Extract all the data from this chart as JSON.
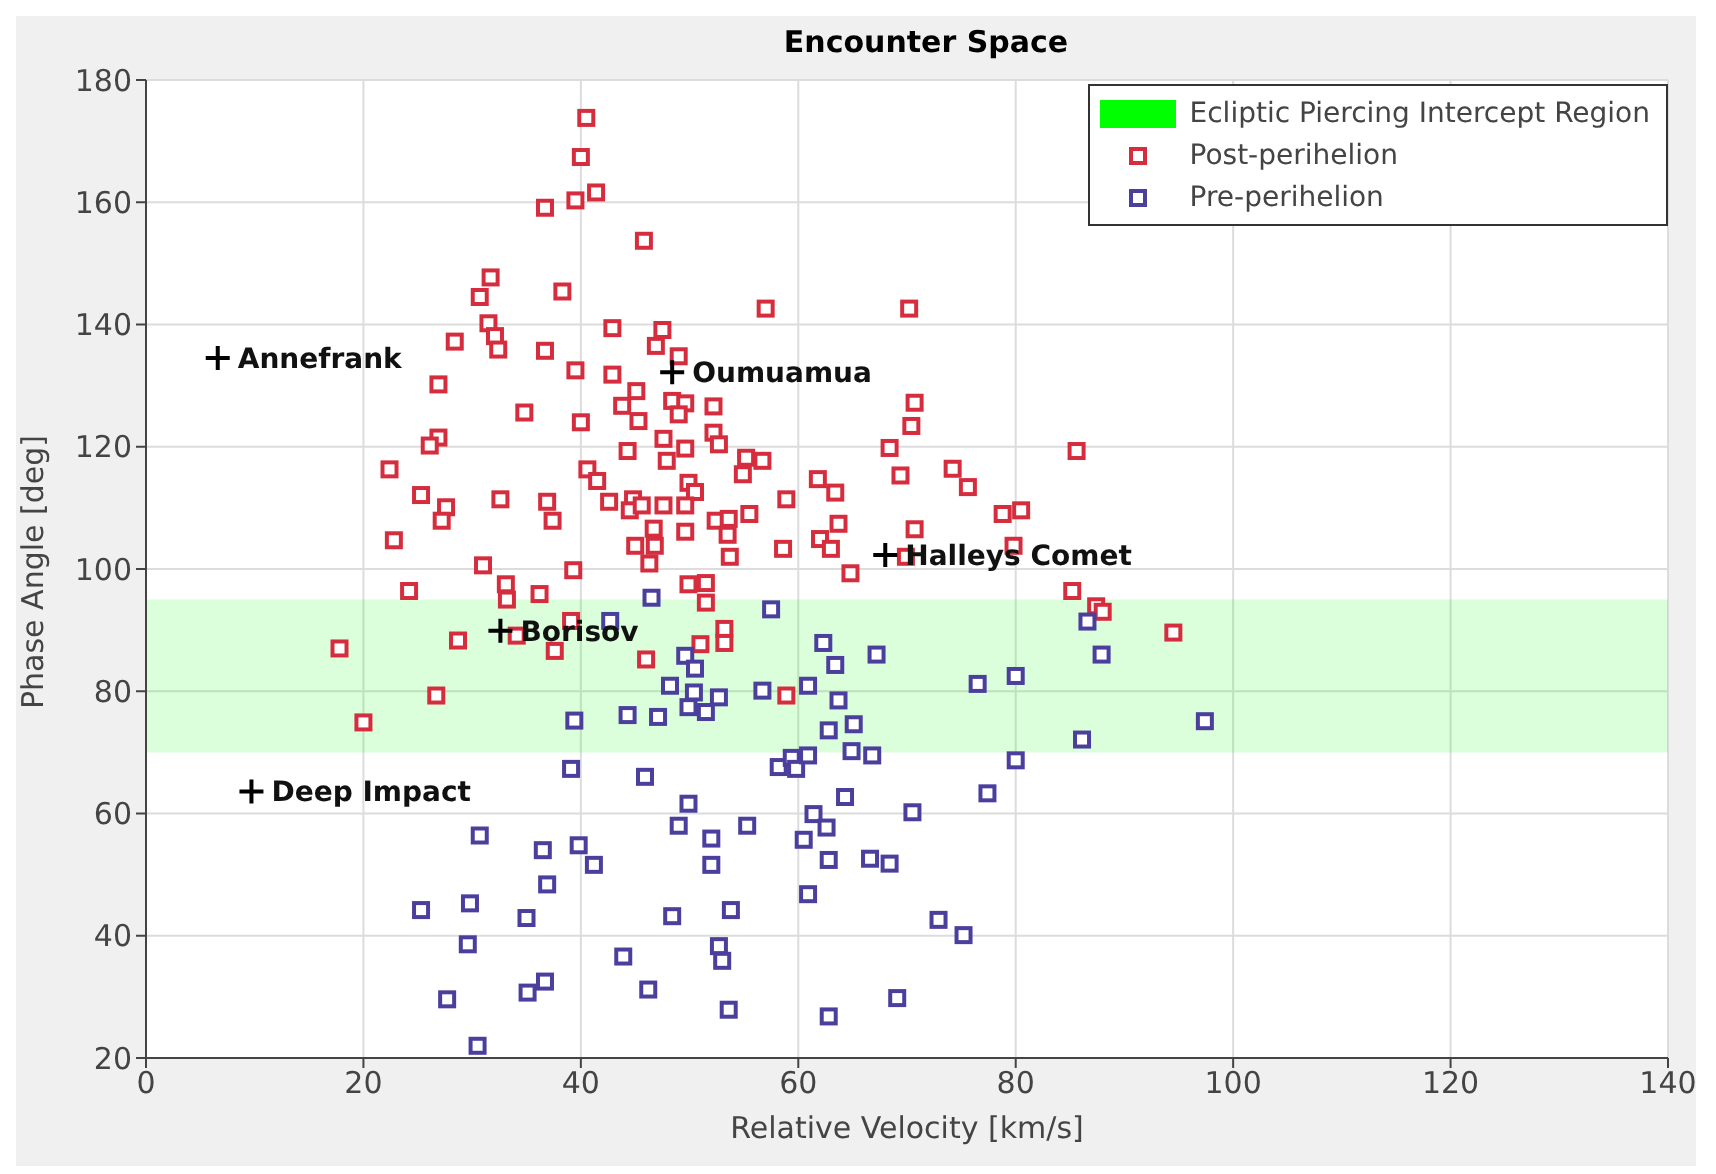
{
  "chart_data": {
    "type": "scatter",
    "title": "Encounter Space",
    "xlabel": "Relative Velocity [km/s]",
    "ylabel": "Phase Angle [deg]",
    "xlim": [
      0,
      140
    ],
    "xticks": [
      0,
      20,
      40,
      60,
      80,
      100,
      120,
      140
    ],
    "ylim": [
      20,
      180
    ],
    "yticks": [
      20,
      40,
      60,
      80,
      100,
      120,
      140,
      160,
      180
    ],
    "grid": true,
    "legend": "top right",
    "marker": "square",
    "bands": [
      {
        "axis": "y",
        "from": 70,
        "to": 95,
        "label": "Ecliptic Piercing Intercept Region",
        "color": "#00ff00"
      }
    ],
    "series": [
      {
        "name": "Post-perihelion",
        "color": "#d62d3e",
        "x": [
          40.5,
          40.0,
          36.7,
          39.5,
          41.4,
          45.8,
          31.7,
          30.7,
          38.3,
          57.0,
          28.4,
          31.5,
          32.1,
          32.4,
          36.7,
          42.9,
          47.5,
          46.9,
          49.0,
          26.9,
          39.5,
          42.9,
          45.1,
          43.8,
          48.4,
          49.6,
          49.0,
          52.2,
          34.8,
          40.0,
          45.3,
          26.9,
          26.1,
          52.2,
          52.7,
          47.6,
          47.9,
          44.3,
          49.6,
          55.2,
          56.7,
          54.9,
          22.4,
          40.6,
          41.5,
          49.9,
          50.5,
          25.3,
          27.6,
          27.2,
          32.6,
          36.9,
          37.4,
          42.6,
          44.8,
          44.5,
          45.6,
          47.6,
          49.6,
          52.4,
          53.6,
          55.5,
          58.9,
          46.7,
          45.0,
          46.8,
          49.6,
          53.5,
          53.7,
          58.6,
          22.8,
          31.0,
          39.3,
          46.3,
          70.2,
          70.7,
          70.4,
          68.4,
          85.6,
          61.8,
          63.4,
          69.4,
          74.2,
          75.6,
          78.8,
          80.5,
          63.7,
          70.7,
          62.0,
          63.0,
          64.8,
          69.9,
          79.8,
          24.2,
          33.1,
          33.2,
          36.2,
          49.9,
          51.5,
          51.5,
          17.8,
          28.7,
          34.1,
          37.6,
          39.1,
          46.0,
          51.0,
          53.2,
          53.2,
          26.7,
          20.0,
          58.9,
          85.2,
          87.4,
          88.0,
          94.5
        ],
        "values": [
          173.8,
          167.4,
          159.1,
          160.3,
          161.6,
          153.7,
          147.7,
          144.5,
          145.4,
          142.6,
          137.2,
          140.2,
          138.1,
          135.9,
          135.7,
          139.4,
          139.1,
          136.5,
          134.8,
          130.2,
          132.5,
          131.8,
          129.1,
          126.7,
          127.5,
          127.1,
          125.3,
          126.6,
          125.6,
          124.0,
          124.2,
          121.5,
          120.2,
          122.3,
          120.4,
          121.3,
          117.7,
          119.3,
          119.7,
          118.2,
          117.7,
          115.5,
          116.3,
          116.3,
          114.4,
          114.1,
          112.6,
          112.1,
          110.1,
          107.9,
          111.4,
          111.0,
          107.9,
          111.0,
          111.4,
          109.6,
          110.4,
          110.4,
          110.4,
          107.9,
          108.2,
          109.0,
          111.4,
          106.6,
          103.8,
          103.8,
          106.1,
          105.6,
          102.0,
          103.3,
          104.7,
          100.6,
          99.8,
          100.9,
          142.6,
          127.2,
          123.4,
          119.8,
          119.3,
          114.7,
          112.5,
          115.3,
          116.4,
          113.4,
          109.0,
          109.6,
          107.4,
          106.5,
          104.9,
          103.3,
          99.3,
          102.0,
          103.8,
          96.4,
          97.5,
          95.0,
          95.9,
          97.5,
          97.7,
          94.5,
          87.0,
          88.3,
          89.1,
          86.6,
          91.5,
          85.2,
          87.7,
          90.2,
          87.9,
          79.3,
          74.9,
          79.3,
          96.4,
          93.9,
          93.0,
          89.6
        ]
      },
      {
        "name": "Pre-perihelion",
        "color": "#4b3f9e",
        "x": [
          46.5,
          42.7,
          57.5,
          49.6,
          50.5,
          48.2,
          50.4,
          52.7,
          49.9,
          51.5,
          56.7,
          44.3,
          47.1,
          39.4,
          39.1,
          45.9,
          49.9,
          49.0,
          52.0,
          55.3,
          52.0,
          30.7,
          36.5,
          39.8,
          41.2,
          36.9,
          25.3,
          29.8,
          35.0,
          48.4,
          53.8,
          29.6,
          52.7,
          53.0,
          43.9,
          35.1,
          36.7,
          27.7,
          46.2,
          53.6,
          30.5,
          86.6,
          87.9,
          62.3,
          67.2,
          63.4,
          60.9,
          63.7,
          76.5,
          80.0,
          62.8,
          65.1,
          64.9,
          66.8,
          58.2,
          59.4,
          59.8,
          60.9,
          97.4,
          86.1,
          80.0,
          77.4,
          64.3,
          70.5,
          61.4,
          62.6,
          60.5,
          62.8,
          66.6,
          68.4,
          60.9,
          72.9,
          75.2,
          69.1,
          62.8
        ],
        "values": [
          95.3,
          91.5,
          93.4,
          85.8,
          83.7,
          80.9,
          79.8,
          79.0,
          77.4,
          76.6,
          80.1,
          76.1,
          75.8,
          75.2,
          67.3,
          66.0,
          61.6,
          58.0,
          55.9,
          58.0,
          51.6,
          56.4,
          54.0,
          54.8,
          51.6,
          48.4,
          44.2,
          45.3,
          42.9,
          43.2,
          44.2,
          38.6,
          38.3,
          35.9,
          36.6,
          30.7,
          32.5,
          29.6,
          31.2,
          27.9,
          22.0,
          91.4,
          86.0,
          87.9,
          86.0,
          84.3,
          80.9,
          78.5,
          81.2,
          82.5,
          73.6,
          74.6,
          70.2,
          69.5,
          67.6,
          69.1,
          67.3,
          69.5,
          75.1,
          72.1,
          68.7,
          63.3,
          62.7,
          60.2,
          59.9,
          57.7,
          55.7,
          52.4,
          52.6,
          51.8,
          46.8,
          42.6,
          40.1,
          29.8,
          26.8
        ]
      },
      {
        "color": "#000000",
        "marker": "cross",
        "x": [
          6.6,
          48.4,
          68.0,
          32.6,
          9.7
        ],
        "values": [
          134.5,
          132.2,
          102.3,
          89.9,
          63.6
        ]
      }
    ],
    "annotations": [
      {
        "text": "Annefrank",
        "x": 6.6,
        "y": 134.5
      },
      {
        "text": "Oumuamua",
        "x": 48.4,
        "y": 132.2
      },
      {
        "text": "Halleys Comet",
        "x": 68.0,
        "y": 102.3
      },
      {
        "text": "Borisov",
        "x": 32.6,
        "y": 89.9
      },
      {
        "text": "Deep Impact",
        "x": 9.7,
        "y": 63.6
      }
    ]
  }
}
